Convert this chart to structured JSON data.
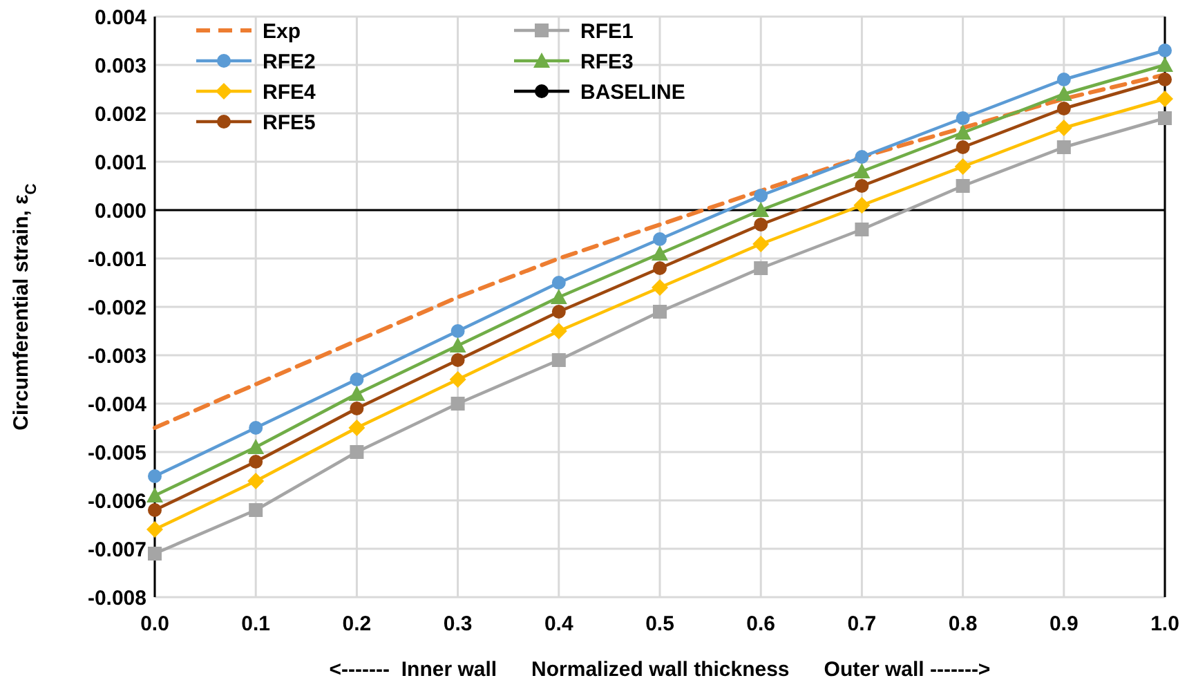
{
  "chart_data": {
    "type": "line",
    "xlabel": "<-------  Inner wall      Normalized wall thickness      Outer wall ------->",
    "ylabel": "Circumferential strain, ε$_{C}$",
    "x": [
      0,
      0.1,
      0.2,
      0.3,
      0.4,
      0.5,
      0.6,
      0.7,
      0.8,
      0.9,
      1.0
    ],
    "xlim": [
      0,
      1
    ],
    "ylim": [
      -0.008,
      0.004
    ],
    "xticks": [
      {
        "value": 0,
        "label": "0.0"
      },
      {
        "value": 0.1,
        "label": "0.1"
      },
      {
        "value": 0.2,
        "label": "0.2"
      },
      {
        "value": 0.3,
        "label": "0.3"
      },
      {
        "value": 0.4,
        "label": "0.4"
      },
      {
        "value": 0.5,
        "label": "0.5"
      },
      {
        "value": 0.6,
        "label": "0.6"
      },
      {
        "value": 0.7,
        "label": "0.7"
      },
      {
        "value": 0.8,
        "label": "0.8"
      },
      {
        "value": 0.9,
        "label": "0.9"
      },
      {
        "value": 1,
        "label": "1.0"
      }
    ],
    "yticks": [
      {
        "value": -0.008,
        "label": "-0.008"
      },
      {
        "value": -0.007,
        "label": "-0.007"
      },
      {
        "value": -0.006,
        "label": "-0.006"
      },
      {
        "value": -0.005,
        "label": "-0.005"
      },
      {
        "value": -0.004,
        "label": "-0.004"
      },
      {
        "value": -0.003,
        "label": "-0.003"
      },
      {
        "value": -0.002,
        "label": "-0.002"
      },
      {
        "value": -0.001,
        "label": "-0.001"
      },
      {
        "value": 0,
        "label": "0.000"
      },
      {
        "value": 0.001,
        "label": "0.001"
      },
      {
        "value": 0.002,
        "label": "0.002"
      },
      {
        "value": 0.003,
        "label": "0.003"
      },
      {
        "value": 0.004,
        "label": "0.004"
      }
    ],
    "grid": true,
    "legend": "top left",
    "series": [
      {
        "name": "Exp",
        "color": "#ed7d31",
        "line_style": "dashed",
        "marker": "none",
        "values": [
          -0.0045,
          -0.0036,
          -0.0027,
          -0.0018,
          -0.001,
          -0.0003,
          0.0004,
          0.0011,
          0.0017,
          0.0023,
          0.0028
        ]
      },
      {
        "name": "RFE1",
        "color": "#a5a5a5",
        "marker": "square",
        "values": [
          -0.0071,
          -0.0062,
          -0.005,
          -0.004,
          -0.0031,
          -0.0021,
          -0.0012,
          -0.0004,
          0.0005,
          0.0013,
          0.0019
        ]
      },
      {
        "name": "RFE2",
        "color": "#5b9bd5",
        "marker": "circle",
        "values": [
          -0.0055,
          -0.0045,
          -0.0035,
          -0.0025,
          -0.0015,
          -0.0006,
          0.0003,
          0.0011,
          0.0019,
          0.0027,
          0.0033
        ]
      },
      {
        "name": "RFE3",
        "color": "#70ad47",
        "marker": "triangle",
        "values": [
          -0.0059,
          -0.0049,
          -0.0038,
          -0.0028,
          -0.0018,
          -0.0009,
          0.0,
          0.0008,
          0.0016,
          0.0024,
          0.003
        ]
      },
      {
        "name": "RFE4",
        "color": "#ffc000",
        "marker": "diamond",
        "values": [
          -0.0066,
          -0.0056,
          -0.0045,
          -0.0035,
          -0.0025,
          -0.0016,
          -0.0007,
          0.0001,
          0.0009,
          0.0017,
          0.0023
        ]
      },
      {
        "name": "BASELINE",
        "color": "#000000",
        "marker": "circle",
        "values": [
          null,
          null,
          null,
          null,
          null,
          null,
          null,
          null,
          null,
          null,
          null
        ]
      },
      {
        "name": "RFE5",
        "color": "#9e480e",
        "marker": "circle",
        "values": [
          -0.0062,
          -0.0052,
          -0.0041,
          -0.0031,
          -0.0021,
          -0.0012,
          -0.0003,
          0.0005,
          0.0013,
          0.0021,
          0.0027
        ]
      }
    ]
  }
}
